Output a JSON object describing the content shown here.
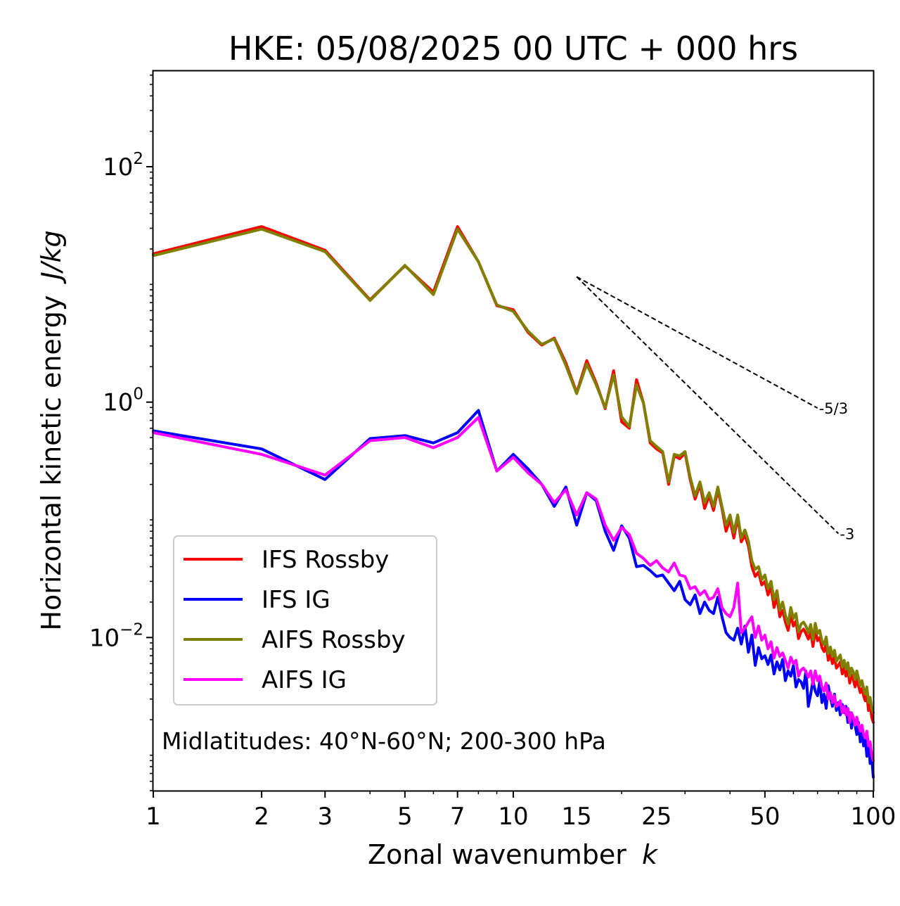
{
  "chart_data": {
    "type": "line",
    "title": "HKE: 05/08/2025 00 UTC + 000 hrs",
    "xlabel": "Zonal wavenumber",
    "xlabel_var": "k",
    "ylabel": "Horizontal kinetic energy",
    "ylabel_unit": "J/kg",
    "xscale": "log",
    "yscale": "log",
    "xlim": [
      1,
      100
    ],
    "ylim": [
      0.0005,
      650
    ],
    "xticks": [
      1,
      2,
      3,
      5,
      7,
      10,
      15,
      25,
      50,
      100
    ],
    "xtick_labels": [
      "1",
      "2",
      "3",
      "5",
      "7",
      "10",
      "15",
      "25",
      "50",
      "100"
    ],
    "yticks": [
      {
        "value": 100,
        "base": "10",
        "exp": "2"
      },
      {
        "value": 1,
        "base": "10",
        "exp": "0"
      },
      {
        "value": 0.01,
        "base": "10",
        "exp": "−2"
      }
    ],
    "annotation": "Midlatitudes: 40°N-60°N; 200-300 hPa",
    "legend_position": "lower-left",
    "reference_lines": [
      {
        "label": "-5/3",
        "slope": -1.6667,
        "x_start": 15,
        "y_start": 11.6,
        "x_end": 70
      },
      {
        "label": "-3",
        "slope": -3,
        "x_start": 15,
        "y_start": 11.6,
        "x_end": 80
      }
    ],
    "series": [
      {
        "name": "IFS Rossby",
        "color": "#ff0000",
        "x": [
          1,
          2,
          3,
          4,
          5,
          6,
          7,
          8,
          9,
          10,
          11,
          12,
          13,
          14,
          15,
          16,
          17,
          18,
          19,
          20,
          21,
          22,
          23,
          24,
          25,
          26,
          27,
          28,
          29,
          30,
          31,
          32,
          33,
          34,
          35,
          36,
          37,
          38,
          39,
          40,
          41,
          42,
          43,
          44,
          45,
          46,
          47,
          48,
          49,
          50,
          51,
          52,
          53,
          54,
          55,
          56,
          57,
          58,
          59,
          60,
          61,
          62,
          63,
          64,
          65,
          66,
          67,
          68,
          69,
          70,
          71,
          72,
          73,
          74,
          75,
          76,
          77,
          78,
          79,
          80,
          81,
          82,
          83,
          84,
          85,
          86,
          87,
          88,
          89,
          90,
          91,
          92,
          93,
          94,
          95,
          96,
          97,
          98,
          99,
          100
        ],
        "values": [
          18.2,
          31,
          19.5,
          7.4,
          14.4,
          8.6,
          31,
          15.6,
          6.6,
          6.1,
          3.9,
          3.05,
          3.5,
          2.15,
          1.2,
          2.25,
          1.45,
          0.88,
          1.85,
          0.68,
          0.6,
          1.55,
          0.98,
          0.45,
          0.4,
          0.37,
          0.2,
          0.35,
          0.33,
          0.37,
          0.22,
          0.15,
          0.2,
          0.125,
          0.16,
          0.12,
          0.18,
          0.125,
          0.08,
          0.1,
          0.07,
          0.105,
          0.065,
          0.074,
          0.06,
          0.04,
          0.033,
          0.036,
          0.028,
          0.03,
          0.023,
          0.027,
          0.018,
          0.022,
          0.015,
          0.017,
          0.0135,
          0.0115,
          0.0155,
          0.0125,
          0.0138,
          0.0098,
          0.0112,
          0.0118,
          0.0108,
          0.0097,
          0.0112,
          0.0084,
          0.0115,
          0.0094,
          0.01,
          0.0082,
          0.0076,
          0.0088,
          0.0064,
          0.0072,
          0.006,
          0.0068,
          0.0055,
          0.0058,
          0.0062,
          0.0049,
          0.0056,
          0.0047,
          0.0053,
          0.0041,
          0.0048,
          0.0044,
          0.0038,
          0.0045,
          0.0039,
          0.0034,
          0.0037,
          0.0032,
          0.0029,
          0.0033,
          0.0024,
          0.0027,
          0.0021,
          0.0019
        ]
      },
      {
        "name": "IFS IG",
        "color": "#0000ff",
        "x": [
          1,
          2,
          3,
          4,
          5,
          6,
          7,
          8,
          9,
          10,
          11,
          12,
          13,
          14,
          15,
          16,
          17,
          18,
          19,
          20,
          21,
          22,
          23,
          24,
          25,
          26,
          27,
          28,
          29,
          30,
          31,
          32,
          33,
          34,
          35,
          36,
          37,
          38,
          39,
          40,
          41,
          42,
          43,
          44,
          45,
          46,
          47,
          48,
          49,
          50,
          51,
          52,
          53,
          54,
          55,
          56,
          57,
          58,
          59,
          60,
          61,
          62,
          63,
          64,
          65,
          66,
          67,
          68,
          69,
          70,
          71,
          72,
          73,
          74,
          75,
          76,
          77,
          78,
          79,
          80,
          81,
          82,
          83,
          84,
          85,
          86,
          87,
          88,
          89,
          90,
          91,
          92,
          93,
          94,
          95,
          96,
          97,
          98,
          99,
          100
        ],
        "values": [
          0.57,
          0.4,
          0.22,
          0.49,
          0.52,
          0.45,
          0.55,
          0.85,
          0.26,
          0.36,
          0.27,
          0.2,
          0.13,
          0.19,
          0.09,
          0.17,
          0.145,
          0.08,
          0.055,
          0.089,
          0.07,
          0.04,
          0.041,
          0.037,
          0.033,
          0.034,
          0.029,
          0.025,
          0.03,
          0.021,
          0.019,
          0.023,
          0.016,
          0.02,
          0.017,
          0.016,
          0.022,
          0.015,
          0.011,
          0.01,
          0.0095,
          0.012,
          0.0088,
          0.0125,
          0.0075,
          0.0105,
          0.0058,
          0.0082,
          0.0066,
          0.007,
          0.0059,
          0.0071,
          0.0049,
          0.0062,
          0.0053,
          0.0065,
          0.0043,
          0.0052,
          0.0047,
          0.0058,
          0.0038,
          0.0044,
          0.0042,
          0.0037,
          0.0052,
          0.0026,
          0.0033,
          0.0043,
          0.0035,
          0.0032,
          0.0042,
          0.0028,
          0.0033,
          0.0025,
          0.0039,
          0.0031,
          0.0026,
          0.0033,
          0.0024,
          0.0028,
          0.0022,
          0.0027,
          0.0023,
          0.0026,
          0.0019,
          0.0023,
          0.0017,
          0.0021,
          0.0018,
          0.0015,
          0.0019,
          0.0013,
          0.0017,
          0.0012,
          0.0014,
          0.00098,
          0.0013,
          0.00085,
          0.00095,
          0.00065
        ]
      },
      {
        "name": "AIFS Rossby",
        "color": "#808000",
        "x": [
          1,
          2,
          3,
          4,
          5,
          6,
          7,
          8,
          9,
          10,
          11,
          12,
          13,
          14,
          15,
          16,
          17,
          18,
          19,
          20,
          21,
          22,
          23,
          24,
          25,
          26,
          27,
          28,
          29,
          30,
          31,
          32,
          33,
          34,
          35,
          36,
          37,
          38,
          39,
          40,
          41,
          42,
          43,
          44,
          45,
          46,
          47,
          48,
          49,
          50,
          51,
          52,
          53,
          54,
          55,
          56,
          57,
          58,
          59,
          60,
          61,
          62,
          63,
          64,
          65,
          66,
          67,
          68,
          69,
          70,
          71,
          72,
          73,
          74,
          75,
          76,
          77,
          78,
          79,
          80,
          81,
          82,
          83,
          84,
          85,
          86,
          87,
          88,
          89,
          90,
          91,
          92,
          93,
          94,
          95,
          96,
          97,
          98,
          99,
          100
        ],
        "values": [
          17.6,
          29.5,
          19,
          7.3,
          14.5,
          8.2,
          29.5,
          15.6,
          6.7,
          5.9,
          4,
          3.1,
          3.45,
          2.05,
          1.18,
          2.1,
          1.4,
          0.9,
          1.7,
          0.75,
          0.62,
          1.4,
          0.98,
          0.47,
          0.42,
          0.38,
          0.21,
          0.36,
          0.35,
          0.38,
          0.23,
          0.16,
          0.21,
          0.14,
          0.17,
          0.13,
          0.19,
          0.13,
          0.09,
          0.11,
          0.078,
          0.11,
          0.07,
          0.082,
          0.066,
          0.045,
          0.038,
          0.04,
          0.031,
          0.034,
          0.026,
          0.03,
          0.021,
          0.025,
          0.017,
          0.02,
          0.0155,
          0.013,
          0.018,
          0.0145,
          0.016,
          0.0112,
          0.013,
          0.0135,
          0.0125,
          0.011,
          0.0129,
          0.0096,
          0.0132,
          0.0108,
          0.0115,
          0.0094,
          0.0087,
          0.0101,
          0.0073,
          0.0083,
          0.0069,
          0.0078,
          0.0063,
          0.0067,
          0.0071,
          0.0056,
          0.0064,
          0.0054,
          0.0061,
          0.0047,
          0.0055,
          0.0051,
          0.0044,
          0.0052,
          0.0045,
          0.0039,
          0.0043,
          0.0037,
          0.0033,
          0.0038,
          0.0028,
          0.0031,
          0.0025,
          0.0023
        ]
      },
      {
        "name": "AIFS IG",
        "color": "#ff00ff",
        "x": [
          1,
          2,
          3,
          4,
          5,
          6,
          7,
          8,
          9,
          10,
          11,
          12,
          13,
          14,
          15,
          16,
          17,
          18,
          19,
          20,
          21,
          22,
          23,
          24,
          25,
          26,
          27,
          28,
          29,
          30,
          31,
          32,
          33,
          34,
          35,
          36,
          37,
          38,
          39,
          40,
          41,
          42,
          43,
          44,
          45,
          46,
          47,
          48,
          49,
          50,
          51,
          52,
          53,
          54,
          55,
          56,
          57,
          58,
          59,
          60,
          61,
          62,
          63,
          64,
          65,
          66,
          67,
          68,
          69,
          70,
          71,
          72,
          73,
          74,
          75,
          76,
          77,
          78,
          79,
          80,
          81,
          82,
          83,
          84,
          85,
          86,
          87,
          88,
          89,
          90,
          91,
          92,
          93,
          94,
          95,
          96,
          97,
          98,
          99,
          100
        ],
        "values": [
          0.55,
          0.36,
          0.24,
          0.47,
          0.5,
          0.41,
          0.5,
          0.74,
          0.26,
          0.34,
          0.25,
          0.2,
          0.14,
          0.18,
          0.11,
          0.17,
          0.15,
          0.09,
          0.067,
          0.086,
          0.075,
          0.052,
          0.047,
          0.041,
          0.045,
          0.039,
          0.036,
          0.043,
          0.034,
          0.033,
          0.026,
          0.027,
          0.023,
          0.025,
          0.021,
          0.022,
          0.026,
          0.018,
          0.016,
          0.015,
          0.018,
          0.029,
          0.011,
          0.012,
          0.0135,
          0.015,
          0.01,
          0.0125,
          0.0095,
          0.0105,
          0.008,
          0.0092,
          0.0067,
          0.0082,
          0.0069,
          0.0074,
          0.0064,
          0.0055,
          0.0068,
          0.006,
          0.0064,
          0.0047,
          0.0053,
          0.0055,
          0.0051,
          0.0046,
          0.0052,
          0.004,
          0.0052,
          0.0043,
          0.0047,
          0.0038,
          0.0035,
          0.0041,
          0.003,
          0.0034,
          0.0028,
          0.0032,
          0.0026,
          0.0027,
          0.0029,
          0.0023,
          0.0026,
          0.0022,
          0.0025,
          0.0019,
          0.0023,
          0.0021,
          0.0018,
          0.0021,
          0.0018,
          0.0016,
          0.0018,
          0.0015,
          0.0014,
          0.0016,
          0.0012,
          0.0013,
          0.001,
          0.0009
        ]
      }
    ]
  }
}
